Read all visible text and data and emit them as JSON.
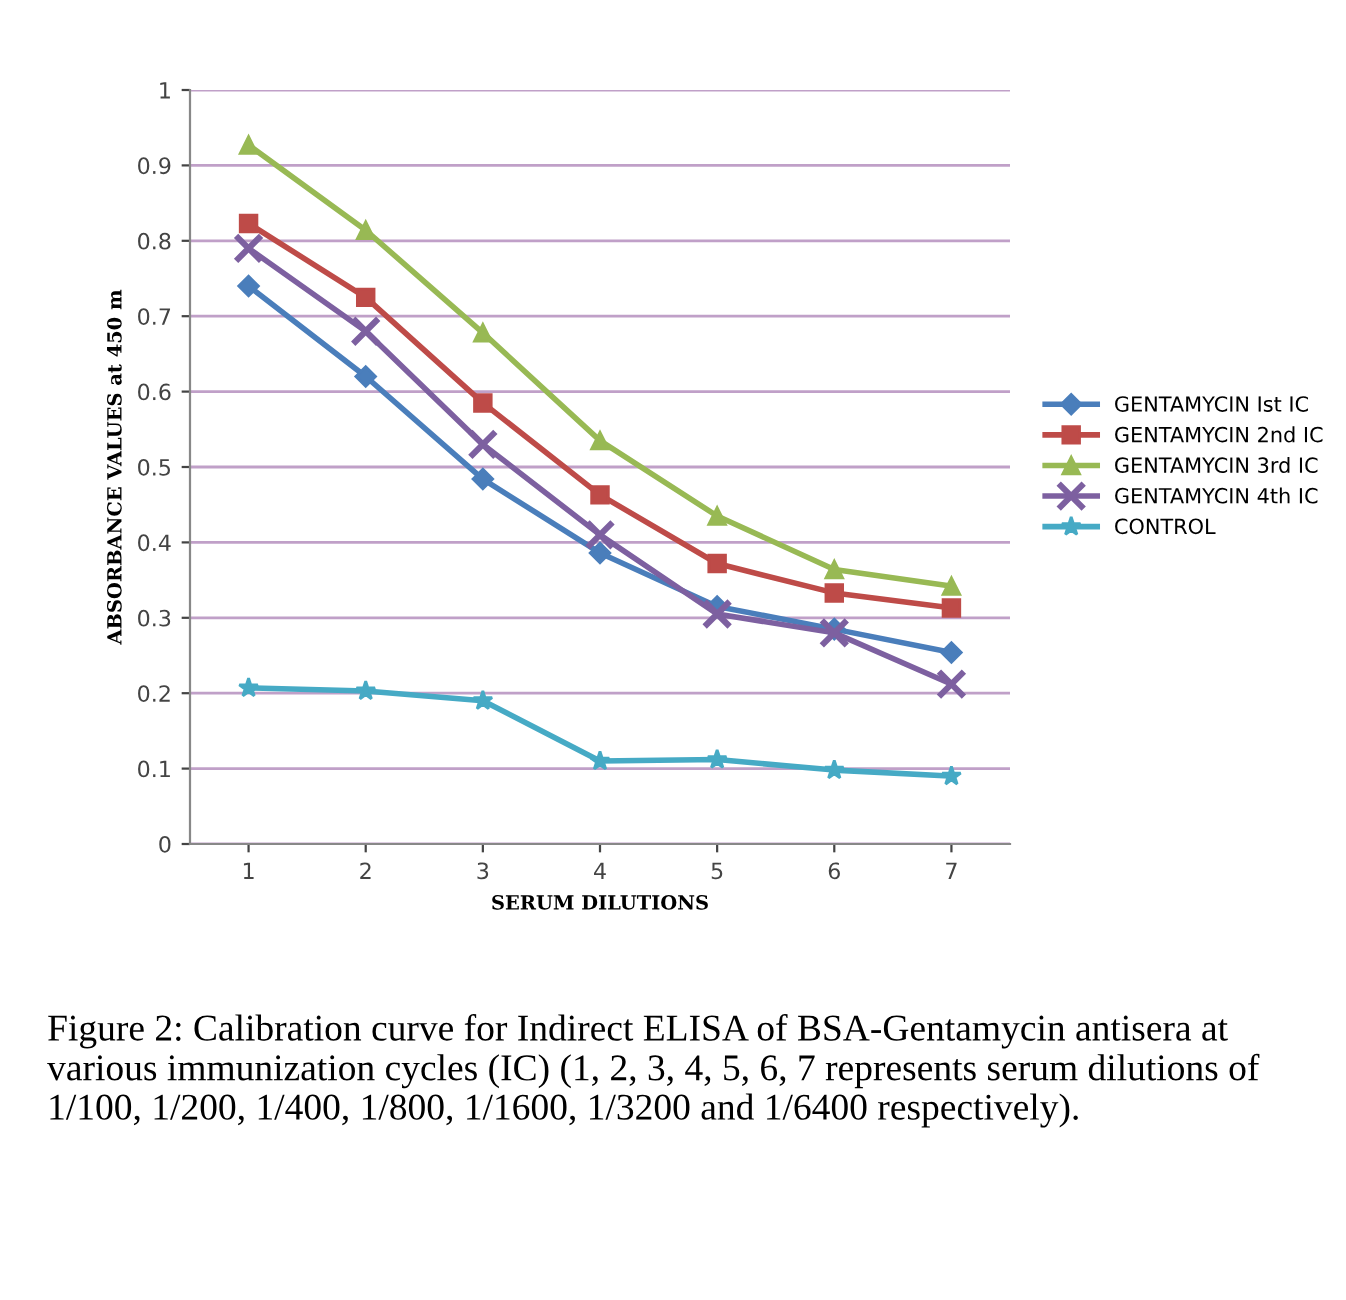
{
  "chart_data": {
    "type": "line",
    "xlabel": "SERUM DILUTIONS",
    "ylabel": "ABSORBANCE VALUES at 450 m",
    "categories": [
      "1",
      "2",
      "3",
      "4",
      "5",
      "6",
      "7"
    ],
    "series": [
      {
        "name": "GENTAMYCIN Ist IC",
        "color": "#4a7ebb",
        "marker": "diamond",
        "values": [
          0.74,
          0.62,
          0.484,
          0.386,
          0.315,
          0.285,
          0.254
        ]
      },
      {
        "name": "GENTAMYCIN 2nd IC",
        "color": "#be4b48",
        "marker": "square",
        "values": [
          0.823,
          0.725,
          0.585,
          0.463,
          0.372,
          0.333,
          0.313
        ]
      },
      {
        "name": "GENTAMYCIN 3rd IC",
        "color": "#98b954",
        "marker": "triangle",
        "values": [
          0.927,
          0.814,
          0.678,
          0.535,
          0.435,
          0.364,
          0.342
        ]
      },
      {
        "name": "GENTAMYCIN 4th IC",
        "color": "#7d60a0",
        "marker": "cross",
        "values": [
          0.79,
          0.68,
          0.53,
          0.41,
          0.305,
          0.28,
          0.212
        ]
      },
      {
        "name": "CONTROL",
        "color": "#46aac5",
        "marker": "star",
        "values": [
          0.207,
          0.203,
          0.19,
          0.11,
          0.112,
          0.098,
          0.09
        ]
      }
    ],
    "ylim": [
      0,
      1
    ],
    "yticks": [
      0,
      0.1,
      0.2,
      0.3,
      0.4,
      0.5,
      0.6,
      0.7,
      0.8,
      0.9,
      1
    ],
    "grid": "y",
    "legend": "right",
    "annotations": [
      "Figure 2: Calibration curve for Indirect ELISA of BSA-Gentamycin antisera at various immunization cycles (IC) (1, 2, 3, 4, 5, 6, 7 represents serum dilutions of 1/100, 1/200, 1/400, 1/800, 1/1600, 1/3200 and 1/6400 respectively)."
    ]
  }
}
